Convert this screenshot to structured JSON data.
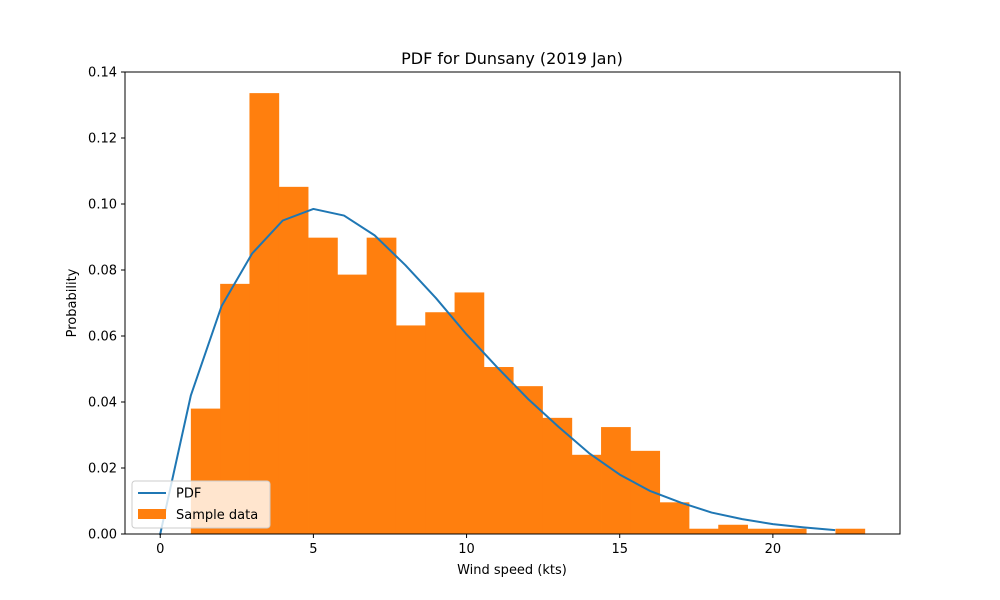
{
  "chart_data": {
    "type": "bar",
    "title": "PDF for Dunsany (2019 Jan)",
    "xlabel": "Wind speed (kts)",
    "ylabel": "Probability",
    "xlim": [
      -1.15,
      24.15
    ],
    "ylim": [
      0,
      0.14
    ],
    "x_ticks": [
      0,
      5,
      10,
      15,
      20
    ],
    "y_ticks": [
      0.0,
      0.02,
      0.04,
      0.06,
      0.08,
      0.1,
      0.12,
      0.14
    ],
    "y_tick_labels": [
      "0.00",
      "0.02",
      "0.04",
      "0.06",
      "0.08",
      "0.10",
      "0.12",
      "0.14"
    ],
    "grid": false,
    "legend_position": "lower-left",
    "series": [
      {
        "name": "Sample data",
        "kind": "histogram",
        "color": "#ff7f0e",
        "bin_edges": [
          1.0,
          1.957,
          2.913,
          3.87,
          4.826,
          5.783,
          6.739,
          7.696,
          8.652,
          9.609,
          10.565,
          11.522,
          12.478,
          13.435,
          14.391,
          15.348,
          16.304,
          17.261,
          18.217,
          19.174,
          20.13,
          21.087,
          22.043,
          23.0
        ],
        "values": [
          0.038,
          0.0758,
          0.1336,
          0.1052,
          0.0898,
          0.0786,
          0.0898,
          0.0632,
          0.0672,
          0.0732,
          0.0506,
          0.0448,
          0.0352,
          0.024,
          0.0324,
          0.0252,
          0.0096,
          0.0016,
          0.0028,
          0.0016,
          0.0016,
          0.0,
          0.0016
        ]
      },
      {
        "name": "PDF",
        "kind": "line",
        "color": "#1f77b4",
        "x": [
          0,
          1,
          2,
          3,
          4,
          5,
          6,
          7,
          8,
          9,
          10,
          11,
          12,
          13,
          14,
          15,
          16,
          17,
          18,
          19,
          20,
          21,
          22
        ],
        "values": [
          0.0,
          0.042,
          0.069,
          0.085,
          0.095,
          0.0985,
          0.0965,
          0.0905,
          0.0815,
          0.0715,
          0.0605,
          0.0505,
          0.041,
          0.0325,
          0.0245,
          0.018,
          0.013,
          0.0095,
          0.0065,
          0.0045,
          0.003,
          0.002,
          0.0012
        ]
      }
    ]
  }
}
